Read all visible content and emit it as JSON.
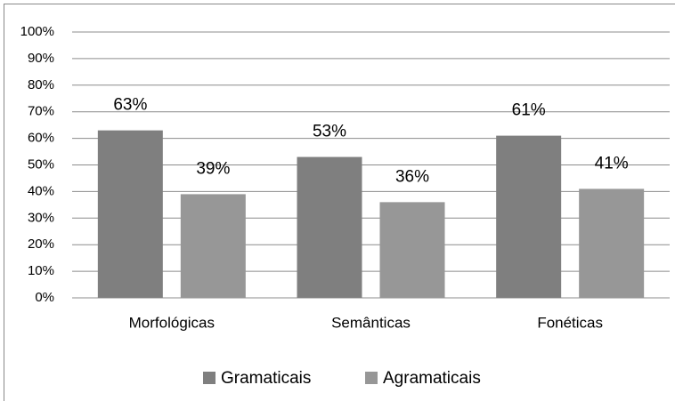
{
  "chart_data": {
    "type": "bar",
    "categories": [
      "Morfológicas",
      "Semânticas",
      "Fonéticas"
    ],
    "series": [
      {
        "name": "Gramaticais",
        "color": "#7f7f7f",
        "values": [
          63,
          53,
          61
        ],
        "value_labels": [
          "63%",
          "53%",
          "61%"
        ]
      },
      {
        "name": "Agramaticais",
        "color": "#979797",
        "values": [
          39,
          36,
          41
        ],
        "value_labels": [
          "39%",
          "36%",
          "41%"
        ]
      }
    ],
    "ylim": [
      0,
      100
    ],
    "yticks": [
      {
        "value": 0,
        "label": "0%"
      },
      {
        "value": 10,
        "label": "10%"
      },
      {
        "value": 20,
        "label": "20%"
      },
      {
        "value": 30,
        "label": "30%"
      },
      {
        "value": 40,
        "label": "40%"
      },
      {
        "value": 50,
        "label": "50%"
      },
      {
        "value": 60,
        "label": "60%"
      },
      {
        "value": 70,
        "label": "70%"
      },
      {
        "value": 80,
        "label": "80%"
      },
      {
        "value": 90,
        "label": "90%"
      },
      {
        "value": 100,
        "label": "100%"
      }
    ],
    "grid": true,
    "legend": "bottom"
  }
}
